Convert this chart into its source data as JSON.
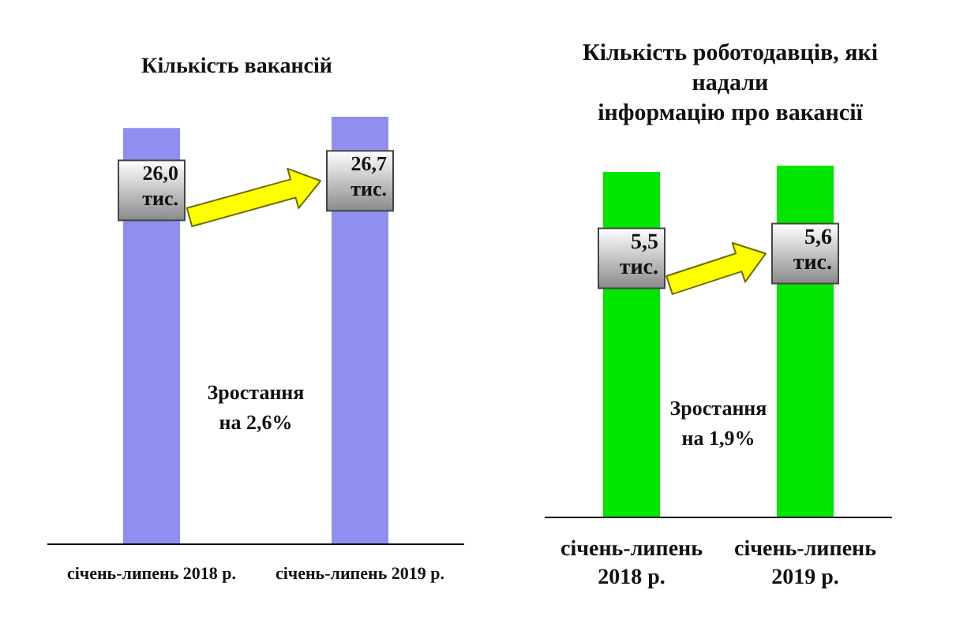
{
  "chart_data": [
    {
      "type": "bar",
      "title": "Кількість вакансій",
      "categories": [
        "січень-липень 2018 р.",
        "січень-липень 2019 р."
      ],
      "values": [
        26.0,
        26.7
      ],
      "color": "#8f8fef",
      "value_labels": [
        "26,0 тис.",
        "26,7 тис."
      ],
      "annotations": [
        "Зростання на 2,6%"
      ]
    },
    {
      "type": "bar",
      "title": "Кількість роботодавців, які\nнадали\nінформацію про вакансії",
      "categories": [
        "січень-липень 2018 р.",
        "січень-липень 2019 р."
      ],
      "values": [
        5.5,
        5.6
      ],
      "color": "#00e600",
      "value_labels": [
        "5,5 тис.",
        "5,6 тис."
      ],
      "annotations": [
        "Зростання на 1,9%"
      ]
    }
  ]
}
